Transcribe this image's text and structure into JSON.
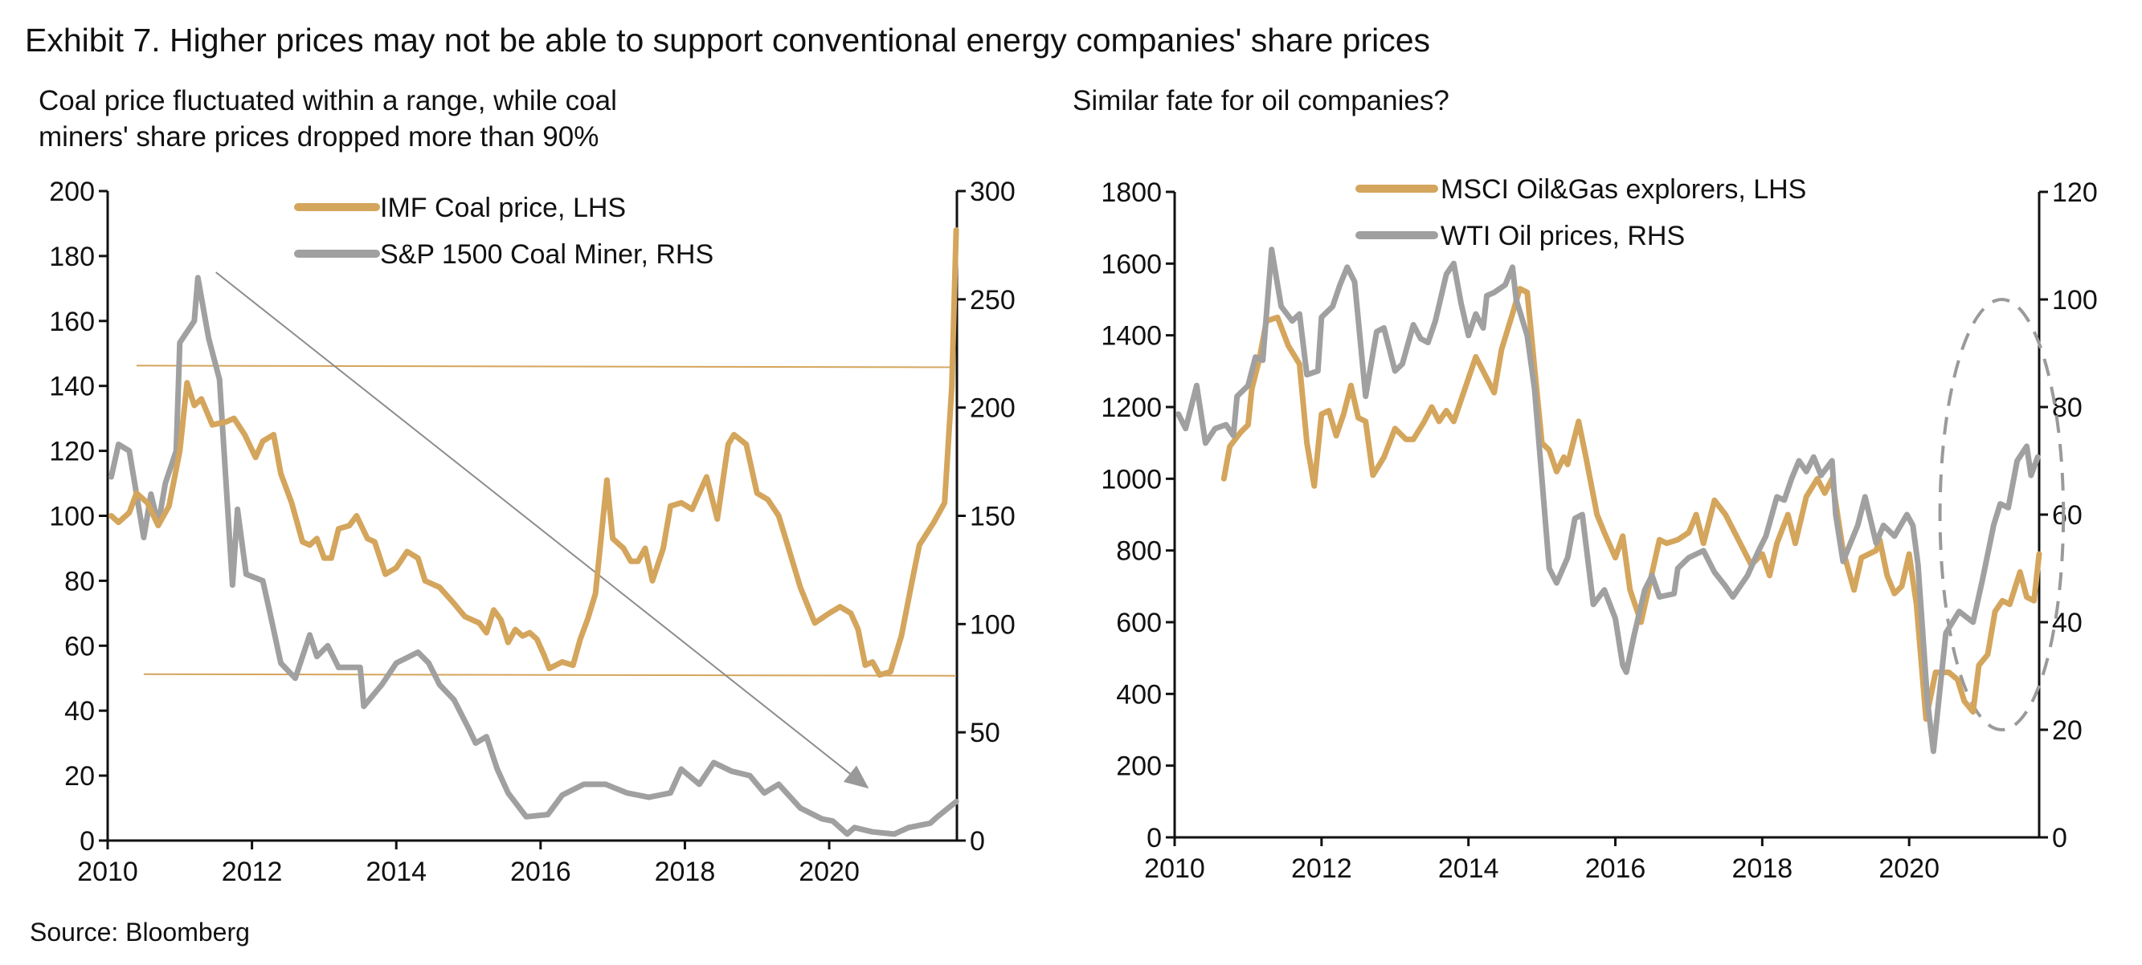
{
  "title": "Exhibit 7. Higher prices may not be able to support conventional energy companies' share prices",
  "source": "Source: Bloomberg",
  "colors": {
    "gold": "#D4A55C",
    "gray": "#A0A0A0",
    "axis": "#111111"
  },
  "chart_data": [
    {
      "type": "line",
      "subtitle_lines": [
        "Coal price fluctuated within a range, while coal",
        "miners' share prices dropped more than 90%"
      ],
      "x_ticks": [
        "2010",
        "2012",
        "2014",
        "2016",
        "2018",
        "2020"
      ],
      "x_tick_values": [
        2010,
        2012,
        2014,
        2016,
        2018,
        2020
      ],
      "xlim": [
        2010,
        2021.77
      ],
      "ylim_left": [
        0,
        200
      ],
      "y_ticks_left": [
        "0",
        "20",
        "40",
        "60",
        "80",
        "100",
        "120",
        "140",
        "160",
        "180",
        "200"
      ],
      "ylim_right": [
        0,
        300
      ],
      "y_ticks_right": [
        "0",
        "50",
        "100",
        "150",
        "200",
        "250",
        "300"
      ],
      "legend_placement": "top-center",
      "grid": false,
      "series": [
        {
          "name": "IMF Coal price, LHS",
          "axis": "left",
          "color": "#D4A55C",
          "x": [
            2010.05,
            2010.15,
            2010.3,
            2010.4,
            2010.55,
            2010.7,
            2010.85,
            2011.0,
            2011.1,
            2011.2,
            2011.3,
            2011.45,
            2011.65,
            2011.75,
            2011.9,
            2012.05,
            2012.15,
            2012.3,
            2012.4,
            2012.55,
            2012.7,
            2012.8,
            2012.9,
            2013.0,
            2013.1,
            2013.2,
            2013.35,
            2013.45,
            2013.6,
            2013.7,
            2013.85,
            2014.0,
            2014.15,
            2014.3,
            2014.4,
            2014.6,
            2014.8,
            2014.95,
            2015.15,
            2015.25,
            2015.35,
            2015.45,
            2015.55,
            2015.65,
            2015.75,
            2015.85,
            2015.95,
            2016.05,
            2016.12,
            2016.3,
            2016.45,
            2016.55,
            2016.65,
            2016.76,
            2016.92,
            2017.0,
            2017.15,
            2017.25,
            2017.35,
            2017.45,
            2017.55,
            2017.7,
            2017.8,
            2017.95,
            2018.1,
            2018.2,
            2018.3,
            2018.45,
            2018.6,
            2018.68,
            2018.85,
            2019.0,
            2019.15,
            2019.3,
            2019.45,
            2019.6,
            2019.8,
            2020.0,
            2020.15,
            2020.3,
            2020.4,
            2020.5,
            2020.6,
            2020.7,
            2020.85,
            2021.0,
            2021.15,
            2021.25,
            2021.45,
            2021.6,
            2021.7,
            2021.76
          ],
          "y": [
            100,
            98,
            101,
            107,
            104,
            97,
            103,
            120,
            141,
            134,
            136,
            128,
            129,
            130,
            125,
            118,
            123,
            125,
            113,
            104,
            92,
            91,
            93,
            87,
            87,
            96,
            97,
            100,
            93,
            92,
            82,
            84,
            89,
            87,
            80,
            78,
            73,
            69,
            67,
            64,
            71,
            68,
            61,
            65,
            63,
            64,
            62,
            57,
            53,
            55,
            54,
            62,
            68,
            76,
            111,
            93,
            90,
            86,
            86,
            90,
            80,
            90,
            103,
            104,
            102,
            107,
            112,
            99,
            122,
            125,
            122,
            107,
            105,
            100,
            89,
            78,
            67,
            70,
            72,
            70,
            65,
            54,
            55,
            51,
            52,
            63,
            80,
            91,
            98,
            104,
            140,
            188
          ]
        },
        {
          "name": "S&P 1500 Coal Miner, RHS",
          "axis": "right",
          "color": "#A0A0A0",
          "x": [
            2010.05,
            2010.15,
            2010.3,
            2010.45,
            2010.5,
            2010.6,
            2010.7,
            2010.8,
            2010.95,
            2011.0,
            2011.2,
            2011.25,
            2011.4,
            2011.55,
            2011.73,
            2011.8,
            2011.92,
            2012.15,
            2012.25,
            2012.4,
            2012.6,
            2012.8,
            2012.9,
            2013.05,
            2013.2,
            2013.5,
            2013.55,
            2013.8,
            2014.0,
            2014.3,
            2014.45,
            2014.6,
            2014.8,
            2015.0,
            2015.1,
            2015.25,
            2015.4,
            2015.55,
            2015.8,
            2016.1,
            2016.3,
            2016.6,
            2016.9,
            2017.2,
            2017.5,
            2017.8,
            2017.95,
            2018.2,
            2018.4,
            2018.65,
            2018.9,
            2019.1,
            2019.3,
            2019.6,
            2019.9,
            2020.05,
            2020.25,
            2020.35,
            2020.6,
            2020.9,
            2021.1,
            2021.4,
            2021.5,
            2021.76
          ],
          "y": [
            168,
            183,
            180,
            150,
            140,
            160,
            146,
            165,
            180,
            230,
            240,
            260,
            232,
            213,
            118,
            153,
            123,
            120,
            105,
            82,
            75,
            95,
            85,
            90,
            80,
            80,
            62,
            72,
            82,
            87,
            82,
            72,
            65,
            52,
            45,
            48,
            33,
            22,
            11,
            12,
            21,
            26,
            26,
            22,
            20,
            22,
            33,
            26,
            36,
            32,
            30,
            22,
            26,
            15,
            10,
            9,
            3,
            6,
            4,
            3,
            6,
            8,
            11,
            18
          ]
        }
      ],
      "annotations": {
        "range_upper": 146,
        "range_lower": 51,
        "trend_arrow": {
          "from": [
            2011.5,
            175
          ],
          "to": [
            2020.55,
            16
          ]
        }
      }
    },
    {
      "type": "line",
      "subtitle_lines": [
        "Similar fate for oil companies?"
      ],
      "x_ticks": [
        "2010",
        "2012",
        "2014",
        "2016",
        "2018",
        "2020"
      ],
      "x_tick_values": [
        2010,
        2012,
        2014,
        2016,
        2018,
        2020
      ],
      "xlim": [
        2010,
        2021.77
      ],
      "ylim_left": [
        0,
        1800
      ],
      "y_ticks_left": [
        "0",
        "200",
        "400",
        "600",
        "800",
        "1000",
        "1200",
        "1400",
        "1600",
        "1800"
      ],
      "ylim_right": [
        0,
        120
      ],
      "y_ticks_right": [
        "0",
        "20",
        "40",
        "60",
        "80",
        "100",
        "120"
      ],
      "legend_placement": "top-center",
      "grid": false,
      "series": [
        {
          "name": "MSCI Oil&Gas explorers, LHS",
          "axis": "left",
          "color": "#D4A55C",
          "x": [
            2010.67,
            2010.75,
            2010.9,
            2011.0,
            2011.05,
            2011.15,
            2011.25,
            2011.4,
            2011.55,
            2011.7,
            2011.8,
            2011.9,
            2012.0,
            2012.1,
            2012.2,
            2012.3,
            2012.4,
            2012.5,
            2012.6,
            2012.7,
            2012.85,
            2013.0,
            2013.15,
            2013.25,
            2013.4,
            2013.5,
            2013.6,
            2013.7,
            2013.8,
            2013.95,
            2014.1,
            2014.2,
            2014.35,
            2014.45,
            2014.6,
            2014.7,
            2014.8,
            2015.0,
            2015.1,
            2015.2,
            2015.3,
            2015.35,
            2015.5,
            2015.6,
            2015.75,
            2015.85,
            2016.0,
            2016.1,
            2016.2,
            2016.35,
            2016.6,
            2016.7,
            2016.85,
            2017.0,
            2017.1,
            2017.2,
            2017.35,
            2017.5,
            2017.6,
            2017.75,
            2017.85,
            2018.0,
            2018.1,
            2018.2,
            2018.35,
            2018.45,
            2018.6,
            2018.75,
            2018.85,
            2018.95,
            2019.1,
            2019.25,
            2019.35,
            2019.55,
            2019.6,
            2019.7,
            2019.8,
            2019.9,
            2020.0,
            2020.1,
            2020.23,
            2020.36,
            2020.54,
            2020.66,
            2020.75,
            2020.87,
            2020.95,
            2021.07,
            2021.17,
            2021.27,
            2021.37,
            2021.51,
            2021.6,
            2021.7,
            2021.77
          ],
          "y": [
            1000,
            1090,
            1130,
            1150,
            1250,
            1330,
            1440,
            1450,
            1370,
            1320,
            1100,
            980,
            1180,
            1190,
            1120,
            1180,
            1260,
            1170,
            1160,
            1010,
            1060,
            1140,
            1110,
            1110,
            1160,
            1200,
            1160,
            1190,
            1160,
            1250,
            1340,
            1300,
            1240,
            1360,
            1460,
            1530,
            1520,
            1100,
            1080,
            1020,
            1060,
            1040,
            1160,
            1060,
            900,
            850,
            780,
            840,
            690,
            600,
            830,
            820,
            830,
            850,
            900,
            820,
            940,
            900,
            860,
            800,
            760,
            790,
            730,
            820,
            900,
            820,
            950,
            1000,
            960,
            1000,
            800,
            690,
            780,
            800,
            830,
            730,
            680,
            700,
            790,
            650,
            330,
            460,
            460,
            440,
            380,
            350,
            480,
            510,
            630,
            660,
            650,
            740,
            670,
            660,
            790
          ]
        },
        {
          "name": "WTI Oil prices, RHS",
          "axis": "right",
          "color": "#A0A0A0",
          "x": [
            2010.05,
            2010.15,
            2010.3,
            2010.42,
            2010.55,
            2010.7,
            2010.8,
            2010.85,
            2011.0,
            2011.1,
            2011.2,
            2011.32,
            2011.45,
            2011.6,
            2011.7,
            2011.8,
            2011.95,
            2012.0,
            2012.15,
            2012.25,
            2012.35,
            2012.45,
            2012.6,
            2012.75,
            2012.85,
            2013.0,
            2013.1,
            2013.25,
            2013.35,
            2013.45,
            2013.55,
            2013.7,
            2013.8,
            2013.9,
            2014.0,
            2014.1,
            2014.2,
            2014.25,
            2014.35,
            2014.5,
            2014.6,
            2014.65,
            2014.8,
            2014.9,
            2015.0,
            2015.1,
            2015.2,
            2015.35,
            2015.45,
            2015.55,
            2015.7,
            2015.85,
            2016.0,
            2016.1,
            2016.15,
            2016.25,
            2016.4,
            2016.5,
            2016.6,
            2016.8,
            2016.85,
            2017.0,
            2017.2,
            2017.35,
            2017.5,
            2017.6,
            2017.8,
            2017.95,
            2018.05,
            2018.2,
            2018.3,
            2018.4,
            2018.5,
            2018.6,
            2018.7,
            2018.8,
            2018.95,
            2019.0,
            2019.1,
            2019.3,
            2019.4,
            2019.55,
            2019.65,
            2019.8,
            2019.97,
            2020.05,
            2020.12,
            2020.25,
            2020.33,
            2020.5,
            2020.68,
            2020.87,
            2021.0,
            2021.15,
            2021.24,
            2021.35,
            2021.47,
            2021.6,
            2021.66,
            2021.75
          ],
          "y": [
            78.7,
            76,
            84,
            73.3,
            76,
            76.7,
            74.7,
            82,
            84,
            89.3,
            88.7,
            109.3,
            98.7,
            96,
            97.3,
            86,
            86.7,
            96.7,
            98.7,
            102.7,
            106,
            103.3,
            82,
            94,
            94.7,
            86.7,
            88,
            95.3,
            92.7,
            92,
            96,
            104.7,
            106.7,
            99.3,
            93.3,
            97.3,
            94.7,
            100.7,
            101.3,
            102.7,
            106,
            100,
            93.3,
            83.3,
            66.7,
            50,
            47.3,
            52,
            59.3,
            60,
            43.3,
            46,
            40.7,
            32,
            30.7,
            37.3,
            46,
            48.7,
            44.7,
            45.3,
            50,
            52,
            53.3,
            49.3,
            46.7,
            44.7,
            48.7,
            53.3,
            56,
            63.3,
            62.7,
            66.7,
            70,
            68,
            70.7,
            67.3,
            70,
            60,
            51.3,
            58,
            63.3,
            54.7,
            58,
            56,
            60,
            58,
            50.7,
            25.3,
            16,
            38,
            42,
            40,
            48,
            58,
            62,
            61.3,
            70,
            72.7,
            67.3,
            70.7
          ]
        }
      ],
      "annotations": {
        "dashed_ellipse": {
          "x_range": [
            2020.42,
            2022.1
          ],
          "y_range_right": [
            20,
            100
          ]
        }
      }
    }
  ]
}
